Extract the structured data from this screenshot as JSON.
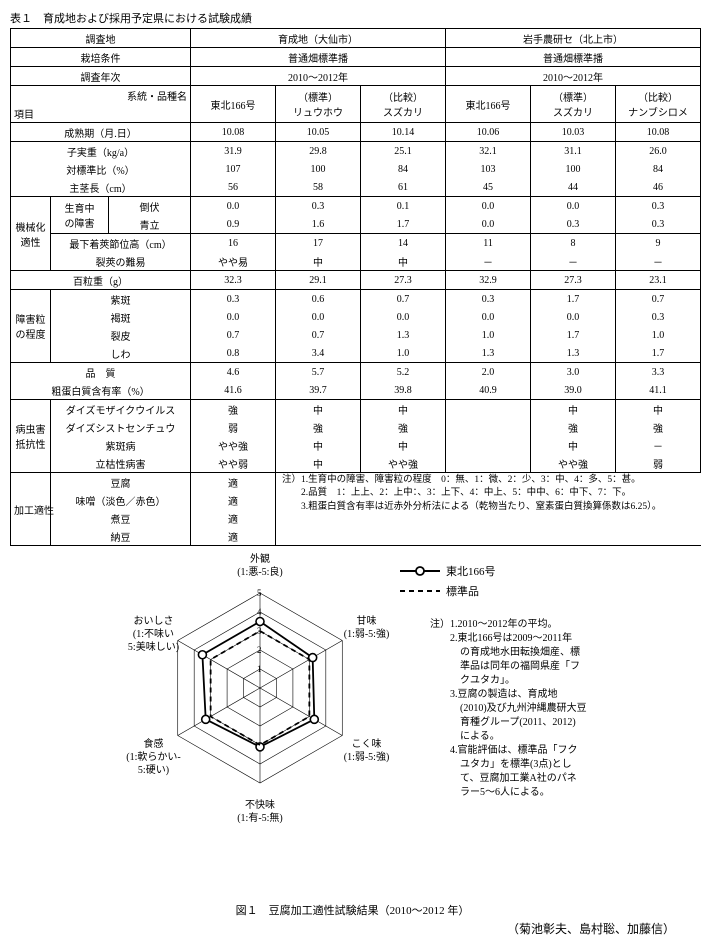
{
  "table_title": "表１　育成地および採用予定県における試験成績",
  "header": {
    "r1": [
      "調査地",
      "育成地（大仙市）",
      "岩手農研セ（北上市）"
    ],
    "r2": [
      "栽培条件",
      "普通畑標準播",
      "普通畑標準播"
    ],
    "r3": [
      "調査年次",
      "2010～2012年",
      "2010～2012年"
    ],
    "r4_left": [
      "系統・品種名",
      "項目"
    ],
    "cols_a": [
      "東北166号",
      "（標準）\nリュウホウ",
      "（比較）\nスズカリ"
    ],
    "cols_b": [
      "東北166号",
      "（標準）\nスズカリ",
      "（比較）\nナンブシロメ"
    ]
  },
  "rows_simple": [
    {
      "label": "成熟期（月.日）",
      "a": [
        "10.08",
        "10.05",
        "10.14"
      ],
      "b": [
        "10.06",
        "10.03",
        "10.08"
      ]
    },
    {
      "label": "子実重（kg/a）",
      "a": [
        "31.9",
        "29.8",
        "25.1"
      ],
      "b": [
        "32.1",
        "31.1",
        "26.0"
      ]
    },
    {
      "label": "対標準比（%）",
      "a": [
        "107",
        "100",
        "84"
      ],
      "b": [
        "103",
        "100",
        "84"
      ]
    },
    {
      "label": "主茎長（cm）",
      "a": [
        "56",
        "58",
        "61"
      ],
      "b": [
        "45",
        "44",
        "46"
      ]
    }
  ],
  "groups": [
    {
      "name": "機械化\n適性",
      "sub": [
        {
          "g2": "生育中\nの障害",
          "rows": [
            {
              "label": "倒伏",
              "a": [
                "0.0",
                "0.3",
                "0.1"
              ],
              "b": [
                "0.0",
                "0.0",
                "0.3"
              ]
            },
            {
              "label": "青立",
              "a": [
                "0.9",
                "1.6",
                "1.7"
              ],
              "b": [
                "0.0",
                "0.3",
                "0.3"
              ]
            }
          ]
        },
        {
          "g2": "",
          "rows": [
            {
              "label": "最下着莢節位高（cm）",
              "a": [
                "16",
                "17",
                "14"
              ],
              "b": [
                "11",
                "8",
                "9"
              ]
            },
            {
              "label": "裂莢の難易",
              "a": [
                "やや易",
                "中",
                "中"
              ],
              "b": [
                "－",
                "－",
                "－"
              ]
            }
          ]
        }
      ]
    }
  ],
  "row_hyaku": {
    "label": "百粒重（g）",
    "a": [
      "32.3",
      "29.1",
      "27.3"
    ],
    "b": [
      "32.9",
      "27.3",
      "23.1"
    ]
  },
  "group_shogai": {
    "name": "障害粒\nの程度",
    "rows": [
      {
        "label": "紫斑",
        "a": [
          "0.3",
          "0.6",
          "0.7"
        ],
        "b": [
          "0.3",
          "1.7",
          "0.7"
        ]
      },
      {
        "label": "褐斑",
        "a": [
          "0.0",
          "0.0",
          "0.0"
        ],
        "b": [
          "0.0",
          "0.0",
          "0.3"
        ]
      },
      {
        "label": "裂皮",
        "a": [
          "0.7",
          "0.7",
          "1.3"
        ],
        "b": [
          "1.0",
          "1.7",
          "1.0"
        ]
      },
      {
        "label": "しわ",
        "a": [
          "0.8",
          "3.4",
          "1.0"
        ],
        "b": [
          "1.3",
          "1.3",
          "1.7"
        ]
      }
    ]
  },
  "rows_quality": [
    {
      "label": "品　質",
      "a": [
        "4.6",
        "5.7",
        "5.2"
      ],
      "b": [
        "2.0",
        "3.0",
        "3.3"
      ]
    },
    {
      "label": "粗蛋白質含有率（%）",
      "a": [
        "41.6",
        "39.7",
        "39.8"
      ],
      "b": [
        "40.9",
        "39.0",
        "41.1"
      ]
    }
  ],
  "group_byochu": {
    "name": "病虫害\n抵抗性",
    "rows": [
      {
        "label": "ダイズモザイクウイルス",
        "a": [
          "強",
          "中",
          "中"
        ],
        "b": [
          "",
          "中",
          "中"
        ]
      },
      {
        "label": "ダイズシストセンチュウ",
        "a": [
          "弱",
          "強",
          "強"
        ],
        "b": [
          "",
          "強",
          "強"
        ]
      },
      {
        "label": "紫斑病",
        "a": [
          "やや強",
          "中",
          "中"
        ],
        "b": [
          "",
          "中",
          "－"
        ]
      },
      {
        "label": "立枯性病害",
        "a": [
          "やや弱",
          "中",
          "やや強"
        ],
        "b": [
          "",
          "やや強",
          "弱"
        ]
      }
    ]
  },
  "group_kako": {
    "name": "加工適性",
    "rows": [
      {
        "label": "豆腐",
        "a": [
          "適"
        ]
      },
      {
        "label": "味噌（淡色／赤色）",
        "a": [
          "適"
        ]
      },
      {
        "label": "煮豆",
        "a": [
          "適"
        ]
      },
      {
        "label": "納豆",
        "a": [
          "適"
        ]
      }
    ]
  },
  "table_notes": [
    "注）1.生育中の障害、障害粒の程度　0：無、1：微、2：少、3：中、4：多、5：甚。",
    "　　2.品質　1：上上、2：上中：、3：上下、4：中上、5：中中、6：中下、7：下。",
    "　　3.粗蛋白質含有率は近赤外分析法による（乾物当たり、窒素蛋白質換算係数は6.25）。"
  ],
  "radar": {
    "axes": [
      {
        "label": "外観",
        "sub": "(1:悪-5:良)",
        "angle": 90
      },
      {
        "label": "甘味",
        "sub": "(1:弱-5:強)",
        "angle": 30
      },
      {
        "label": "こく味",
        "sub": "(1:弱-5:強)",
        "angle": -30
      },
      {
        "label": "不快味",
        "sub": "(1:有-5:無)",
        "angle": -90
      },
      {
        "label": "食感",
        "sub": "(1:軟らかい-\n5:硬い)",
        "angle": -150
      },
      {
        "label": "おいしさ",
        "sub": "(1:不味い\n5:美味しい)",
        "angle": 150
      }
    ],
    "max": 5,
    "series": [
      {
        "name": "東北166号",
        "color": "#000",
        "style": "solid",
        "marker": true,
        "values": [
          3.5,
          3.2,
          3.3,
          3.1,
          3.3,
          3.5
        ]
      },
      {
        "name": "標準品",
        "color": "#000",
        "style": "dash",
        "marker": false,
        "values": [
          3.0,
          3.0,
          3.0,
          3.0,
          3.0,
          3.0
        ]
      }
    ],
    "tick_labels": [
      "1",
      "2",
      "3",
      "4",
      "5"
    ]
  },
  "fig_notes": [
    "注）1.2010～2012年の平均。",
    "　　2.東北166号は2009～2011年",
    "　　　の育成地水田転換畑産、標",
    "　　　準品は同年の福岡県産「フ",
    "　　　クユタカ」。",
    "　　3.豆腐の製造は、育成地",
    "　　　(2010)及び九州沖縄農研大豆",
    "　　　育種グループ(2011、2012)",
    "　　　による。",
    "　　4.官能評価は、標準品「フク",
    "　　　ユタカ」を標準(3点)とし",
    "　　　て、豆腐加工業A社のパネ",
    "　　　ラー5～6人による。"
  ],
  "fig_title": "図１　豆腐加工適性試験結果（2010～2012 年）",
  "authors": "（菊池彰夫、島村聡、加藤信）"
}
